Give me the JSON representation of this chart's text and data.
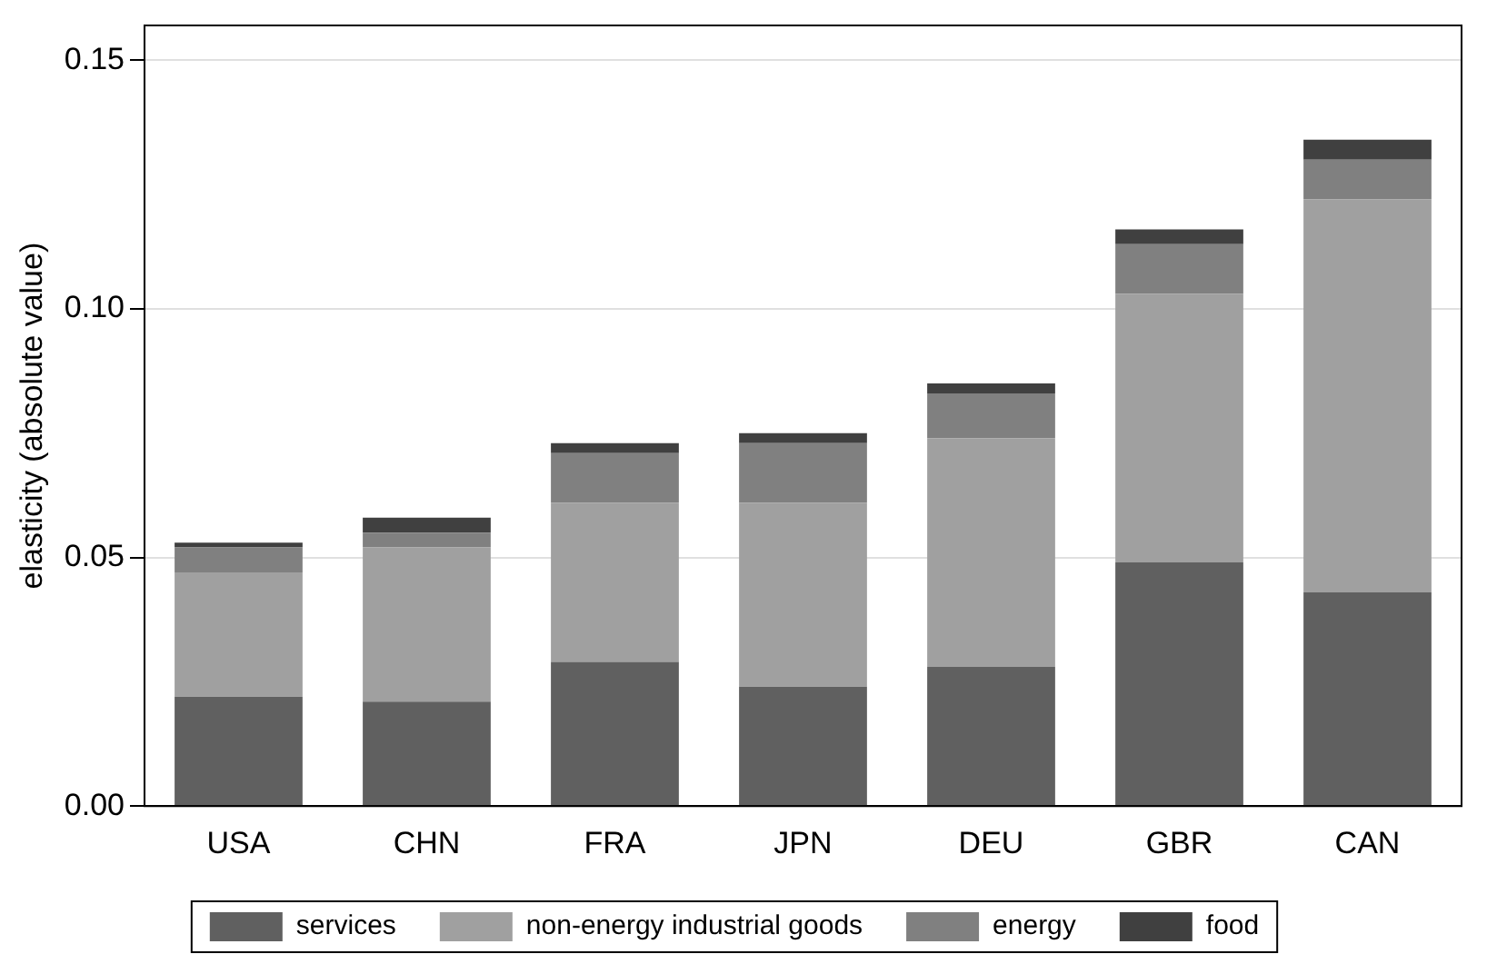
{
  "chart_data": {
    "type": "bar",
    "ylabel": "elasticity (absolute value)",
    "categories": [
      "USA",
      "CHN",
      "FRA",
      "JPN",
      "DEU",
      "GBR",
      "CAN"
    ],
    "stacked": true,
    "series": [
      {
        "name": "services",
        "color": "#606060",
        "values": [
          0.022,
          0.021,
          0.029,
          0.024,
          0.028,
          0.049,
          0.043
        ]
      },
      {
        "name": "non-energy industrial goods",
        "color": "#a0a0a0",
        "values": [
          0.025,
          0.031,
          0.032,
          0.037,
          0.046,
          0.054,
          0.079
        ]
      },
      {
        "name": "energy",
        "color": "#808080",
        "values": [
          0.005,
          0.003,
          0.01,
          0.012,
          0.009,
          0.01,
          0.008
        ]
      },
      {
        "name": "food",
        "color": "#404040",
        "values": [
          0.001,
          0.003,
          0.002,
          0.002,
          0.002,
          0.003,
          0.004
        ]
      }
    ],
    "ylim": [
      0,
      0.157
    ],
    "yticks": [
      {
        "value": 0,
        "label": "0.00"
      },
      {
        "value": 0.05,
        "label": "0.05"
      },
      {
        "value": 0.1,
        "label": "0.10"
      },
      {
        "value": 0.15,
        "label": "0.15"
      }
    ],
    "grid": "y",
    "legend": "bottom"
  }
}
